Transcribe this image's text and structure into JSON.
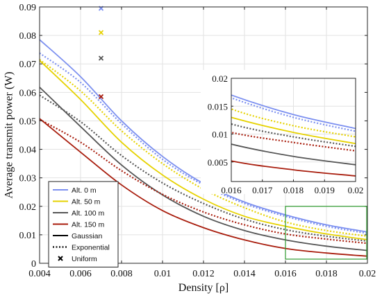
{
  "chart_data": {
    "type": "line",
    "title": "",
    "xlabel": "Density [ρ]",
    "ylabel": "Average transmit power (W)",
    "xlim": [
      0.004,
      0.02
    ],
    "ylim": [
      0,
      0.09
    ],
    "x_ticks": [
      "0.004",
      "0.006",
      "0.008",
      "0.01",
      "0.012",
      "0.014",
      "0.016",
      "0.018",
      "0.02"
    ],
    "y_ticks": [
      "0",
      "0.01",
      "0.02",
      "0.03",
      "0.04",
      "0.05",
      "0.06",
      "0.07",
      "0.08",
      "0.09"
    ],
    "grid": true,
    "colors": {
      "alt0": "#7b8ff0",
      "alt50": "#e6d200",
      "alt100": "#555555",
      "alt150": "#a81c0c",
      "zoom_box": "#2e9a2e"
    },
    "x": [
      0.004,
      0.006,
      0.008,
      0.01,
      0.012,
      0.014,
      0.016,
      0.018,
      0.02
    ],
    "series": [
      {
        "name": "Alt. 0 m",
        "style": "Gaussian",
        "color_key": "alt0",
        "values": [
          0.0785,
          0.0655,
          0.05,
          0.0375,
          0.028,
          0.0215,
          0.017,
          0.0135,
          0.011
        ]
      },
      {
        "name": "Alt. 0 m",
        "style": "Exponential",
        "color_key": "alt0",
        "values": [
          0.0738,
          0.0635,
          0.049,
          0.0365,
          0.0275,
          0.021,
          0.0165,
          0.013,
          0.0105
        ]
      },
      {
        "name": "Alt. 50 m",
        "style": "Gaussian",
        "color_key": "alt50",
        "values": [
          0.0712,
          0.0575,
          0.0425,
          0.031,
          0.0225,
          0.0165,
          0.013,
          0.0103,
          0.0083
        ]
      },
      {
        "name": "Alt. 50 m",
        "style": "Exponential",
        "color_key": "alt50",
        "values": [
          0.0715,
          0.0605,
          0.0465,
          0.035,
          0.026,
          0.0195,
          0.0145,
          0.0115,
          0.0095
        ]
      },
      {
        "name": "Alt. 100 m",
        "style": "Gaussian",
        "color_key": "alt100",
        "values": [
          0.0618,
          0.048,
          0.0345,
          0.024,
          0.0165,
          0.0115,
          0.0082,
          0.006,
          0.0045
        ]
      },
      {
        "name": "Alt. 100 m",
        "style": "Exponential",
        "color_key": "alt100",
        "values": [
          0.059,
          0.0497,
          0.0378,
          0.0282,
          0.021,
          0.0155,
          0.0118,
          0.0095,
          0.0078
        ]
      },
      {
        "name": "Alt. 150 m",
        "style": "Gaussian",
        "color_key": "alt150",
        "values": [
          0.0508,
          0.039,
          0.0275,
          0.0185,
          0.0125,
          0.0082,
          0.0052,
          0.0036,
          0.0025
        ]
      },
      {
        "name": "Alt. 150 m",
        "style": "Exponential",
        "color_key": "alt150",
        "values": [
          0.0505,
          0.0425,
          0.0325,
          0.0242,
          0.018,
          0.0135,
          0.0103,
          0.0085,
          0.007
        ]
      }
    ],
    "uniform_points": [
      {
        "name": "Alt. 0 m",
        "color_key": "alt0",
        "x": 0.007,
        "y": 0.0895
      },
      {
        "name": "Alt. 50 m",
        "color_key": "alt50",
        "x": 0.007,
        "y": 0.081
      },
      {
        "name": "Alt. 100 m",
        "color_key": "alt100",
        "x": 0.007,
        "y": 0.072
      },
      {
        "name": "Alt. 150 m",
        "color_key": "alt150",
        "x": 0.007,
        "y": 0.0585
      }
    ],
    "legend": {
      "placement": "bottom-left",
      "entries": [
        {
          "label": "Alt. 0 m",
          "kind": "solid",
          "color_key": "alt0"
        },
        {
          "label": "Alt. 50 m",
          "kind": "solid",
          "color_key": "alt50"
        },
        {
          "label": "Alt. 100 m",
          "kind": "solid",
          "color_key": "alt100"
        },
        {
          "label": "Alt. 150 m",
          "kind": "solid",
          "color_key": "alt150"
        },
        {
          "label": "Gaussian",
          "kind": "solid",
          "color": "#000000"
        },
        {
          "label": "Exponential",
          "kind": "dotted",
          "color": "#000000"
        },
        {
          "label": "Uniform",
          "kind": "marker",
          "color": "#000000"
        }
      ]
    },
    "zoom_region": {
      "x": [
        0.016,
        0.02
      ],
      "y": [
        0,
        0.02
      ]
    },
    "inset": {
      "placement": "right-middle",
      "xlim": [
        0.016,
        0.02
      ],
      "ylim": [
        0.0015,
        0.02
      ],
      "x_ticks": [
        "0.016",
        "0.017",
        "0.018",
        "0.019",
        "0.02"
      ],
      "y_ticks": [
        "0.005",
        "0.01",
        "0.015",
        "0.02"
      ]
    }
  }
}
